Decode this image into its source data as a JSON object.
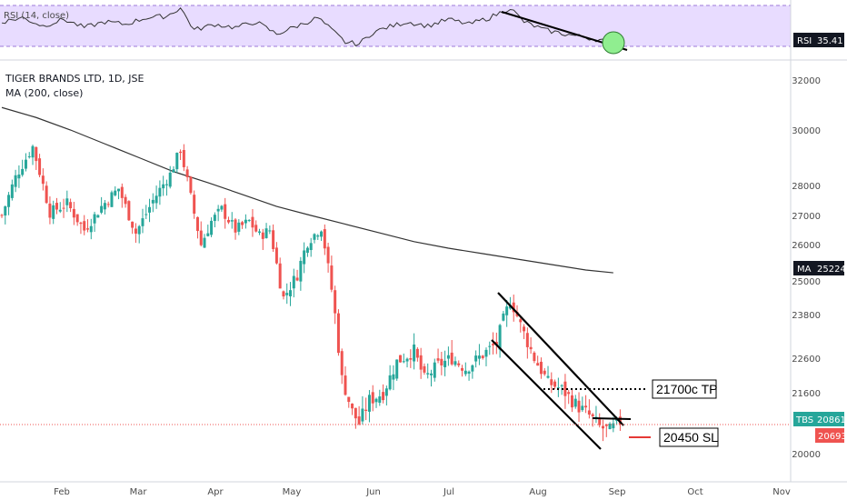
{
  "chart_data": {
    "type": "candlestick",
    "symbol": "TBS",
    "title": "TIGER BRANDS LTD, 1D, JSE",
    "ma_label": "MA (200, close)",
    "rsi_label": "RSI (14, close)",
    "x_ticks": [
      "Feb",
      "Mar",
      "Apr",
      "May",
      "Jun",
      "Jul",
      "Aug",
      "Sep",
      "Oct",
      "Nov"
    ],
    "y_ticks": [
      "32000",
      "30000",
      "28000",
      "27000",
      "26000",
      "25000",
      "23800",
      "22600",
      "21600",
      "20000"
    ],
    "price_labels": {
      "ma": {
        "tag": "MA",
        "value": "25224",
        "y": 25224
      },
      "last": {
        "tag": "TBS",
        "value": "20861",
        "y": 20861
      },
      "prev": {
        "value": "20693",
        "y": 20693
      }
    },
    "rsi": {
      "tag": "RSI",
      "value": "35.41"
    },
    "annotations": {
      "tp": {
        "text": "21700c TP",
        "price": 21700
      },
      "sl": {
        "text": "20450 SL",
        "price": 20450
      }
    },
    "colors": {
      "up": "#26a69a",
      "down": "#ef5350",
      "ma": "#333333",
      "rsi_bg": "#e8dcff",
      "rsi_line": "#333333",
      "circle": "#90ee90"
    },
    "price_path": [
      [
        0,
        27000
      ],
      [
        4,
        28300
      ],
      [
        9,
        29400
      ],
      [
        14,
        27100
      ],
      [
        19,
        27400
      ],
      [
        24,
        26500
      ],
      [
        29,
        27300
      ],
      [
        34,
        27900
      ],
      [
        39,
        26400
      ],
      [
        44,
        27500
      ],
      [
        49,
        28400
      ],
      [
        52,
        29300
      ],
      [
        55,
        27600
      ],
      [
        58,
        26000
      ],
      [
        61,
        26800
      ],
      [
        64,
        27200
      ],
      [
        68,
        26500
      ],
      [
        72,
        26800
      ],
      [
        75,
        26300
      ],
      [
        78,
        26500
      ],
      [
        82,
        24400
      ],
      [
        86,
        25200
      ],
      [
        89,
        26100
      ],
      [
        93,
        26600
      ],
      [
        96,
        24700
      ],
      [
        99,
        22000
      ],
      [
        102,
        21100
      ],
      [
        104,
        20800
      ],
      [
        107,
        21400
      ],
      [
        111,
        21600
      ],
      [
        115,
        22500
      ],
      [
        120,
        22800
      ],
      [
        123,
        22000
      ],
      [
        127,
        22400
      ],
      [
        131,
        22600
      ],
      [
        135,
        22300
      ],
      [
        140,
        22700
      ],
      [
        144,
        23000
      ],
      [
        148,
        24300
      ],
      [
        151,
        23500
      ],
      [
        155,
        22600
      ],
      [
        159,
        21900
      ],
      [
        163,
        21700
      ],
      [
        167,
        21300
      ],
      [
        171,
        21000
      ],
      [
        174,
        20700
      ],
      [
        177,
        20600
      ],
      [
        180,
        20850
      ]
    ],
    "ma_path": [
      [
        0,
        30900
      ],
      [
        10,
        30500
      ],
      [
        20,
        30000
      ],
      [
        30,
        29500
      ],
      [
        40,
        29000
      ],
      [
        50,
        28500
      ],
      [
        60,
        28100
      ],
      [
        70,
        27700
      ],
      [
        80,
        27300
      ],
      [
        90,
        27000
      ],
      [
        100,
        26700
      ],
      [
        110,
        26400
      ],
      [
        120,
        26100
      ],
      [
        130,
        25900
      ],
      [
        140,
        25750
      ],
      [
        150,
        25600
      ],
      [
        160,
        25450
      ],
      [
        170,
        25300
      ],
      [
        178,
        25224
      ]
    ],
    "rsi_path": [
      [
        0,
        55
      ],
      [
        6,
        60
      ],
      [
        12,
        50
      ],
      [
        18,
        58
      ],
      [
        24,
        48
      ],
      [
        30,
        55
      ],
      [
        36,
        52
      ],
      [
        42,
        60
      ],
      [
        48,
        62
      ],
      [
        52,
        72
      ],
      [
        56,
        45
      ],
      [
        62,
        52
      ],
      [
        68,
        48
      ],
      [
        74,
        55
      ],
      [
        80,
        40
      ],
      [
        86,
        50
      ],
      [
        92,
        60
      ],
      [
        96,
        45
      ],
      [
        100,
        30
      ],
      [
        104,
        28
      ],
      [
        108,
        42
      ],
      [
        112,
        48
      ],
      [
        118,
        55
      ],
      [
        124,
        50
      ],
      [
        130,
        58
      ],
      [
        136,
        52
      ],
      [
        142,
        60
      ],
      [
        148,
        72
      ],
      [
        152,
        55
      ],
      [
        158,
        45
      ],
      [
        164,
        40
      ],
      [
        170,
        36
      ],
      [
        175,
        32
      ],
      [
        180,
        35
      ]
    ]
  }
}
